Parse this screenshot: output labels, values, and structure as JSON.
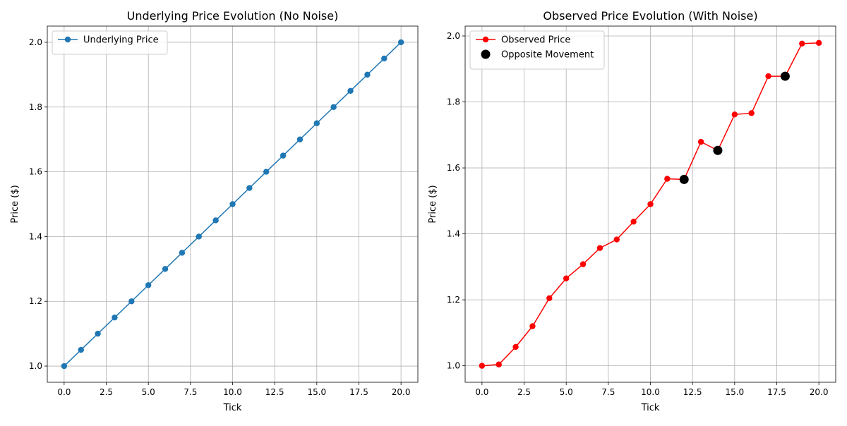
{
  "chart_data": [
    {
      "type": "line",
      "title": "Underlying Price Evolution (No Noise)",
      "xlabel": "Tick",
      "ylabel": "Price ($)",
      "xlim": [
        -1,
        21
      ],
      "ylim": [
        0.95,
        2.05
      ],
      "xticks": [
        0.0,
        2.5,
        5.0,
        7.5,
        10.0,
        12.5,
        15.0,
        17.5,
        20.0
      ],
      "xtick_labels": [
        "0.0",
        "2.5",
        "5.0",
        "7.5",
        "10.0",
        "12.5",
        "15.0",
        "17.5",
        "20.0"
      ],
      "yticks": [
        1.0,
        1.2,
        1.4,
        1.6,
        1.8,
        2.0
      ],
      "ytick_labels": [
        "1.0",
        "1.2",
        "1.4",
        "1.6",
        "1.8",
        "2.0"
      ],
      "grid": true,
      "legend_position": "top-left",
      "series": [
        {
          "name": "Underlying Price",
          "color": "#1f77b4",
          "marker": "circle",
          "x": [
            0,
            1,
            2,
            3,
            4,
            5,
            6,
            7,
            8,
            9,
            10,
            11,
            12,
            13,
            14,
            15,
            16,
            17,
            18,
            19,
            20
          ],
          "y": [
            1.0,
            1.05,
            1.1,
            1.15,
            1.2,
            1.25,
            1.3,
            1.35,
            1.4,
            1.45,
            1.5,
            1.55,
            1.6,
            1.65,
            1.7,
            1.75,
            1.8,
            1.85,
            1.9,
            1.95,
            2.0
          ]
        }
      ]
    },
    {
      "type": "line",
      "title": "Observed Price Evolution (With Noise)",
      "xlabel": "Tick",
      "ylabel": "Price ($)",
      "xlim": [
        -1,
        21
      ],
      "ylim": [
        0.95,
        2.03
      ],
      "xticks": [
        0.0,
        2.5,
        5.0,
        7.5,
        10.0,
        12.5,
        15.0,
        17.5,
        20.0
      ],
      "xtick_labels": [
        "0.0",
        "2.5",
        "5.0",
        "7.5",
        "10.0",
        "12.5",
        "15.0",
        "17.5",
        "20.0"
      ],
      "yticks": [
        1.0,
        1.2,
        1.4,
        1.6,
        1.8,
        2.0
      ],
      "ytick_labels": [
        "1.0",
        "1.2",
        "1.4",
        "1.6",
        "1.8",
        "2.0"
      ],
      "grid": true,
      "legend_position": "top-left",
      "series": [
        {
          "name": "Observed Price",
          "color": "#ff0000",
          "marker": "circle",
          "x": [
            0,
            1,
            2,
            3,
            4,
            5,
            6,
            7,
            8,
            9,
            10,
            11,
            12,
            13,
            14,
            15,
            16,
            17,
            18,
            19,
            20
          ],
          "y": [
            1.0,
            1.004,
            1.057,
            1.12,
            1.205,
            1.265,
            1.308,
            1.357,
            1.383,
            1.437,
            1.49,
            1.567,
            1.565,
            1.679,
            1.653,
            1.762,
            1.766,
            1.878,
            1.878,
            1.977,
            1.979
          ]
        }
      ],
      "highlights": {
        "name": "Opposite Movement",
        "color": "#000000",
        "marker": "circle",
        "x": [
          12,
          14,
          18
        ],
        "y": [
          1.565,
          1.653,
          1.878
        ]
      }
    }
  ]
}
